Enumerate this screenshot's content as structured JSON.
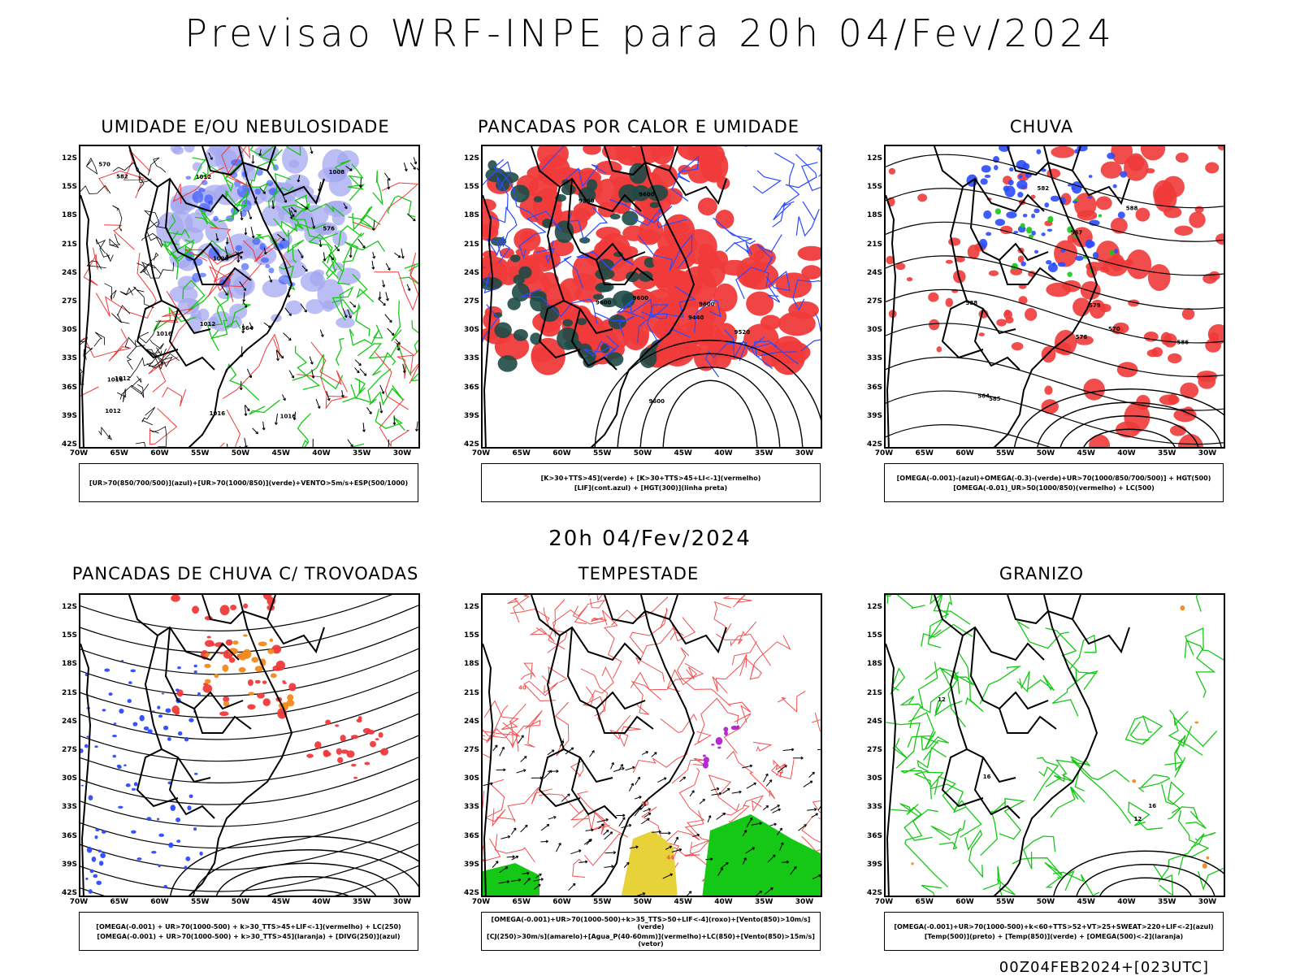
{
  "main_title": "Previsao WRF-INPE  para 20h 04/Fev/2024",
  "mid_title": "20h 04/Fev/2024",
  "footer": "00Z04FEB2024+[023UTC]",
  "lat_labels": [
    "12S",
    "15S",
    "18S",
    "21S",
    "24S",
    "27S",
    "30S",
    "33S",
    "36S",
    "39S",
    "42S"
  ],
  "lon_labels": [
    "70W",
    "65W",
    "60W",
    "55W",
    "50W",
    "45W",
    "40W",
    "35W",
    "30W"
  ],
  "colors": {
    "green": "#16c816",
    "blue": "#2a4bff",
    "red": "#f03a3a",
    "lavender": "#a4a8f0",
    "darkgreen": "#1e4a46",
    "orange": "#f08a20",
    "yellow": "#e8d23a",
    "purple": "#b020d0",
    "pink": "#f05050"
  },
  "panels": [
    {
      "title": "UMIDADE E/OU NEBULOSIDADE",
      "legend": [
        "[UR>70(850/700/500)](azul)+[UR>70(1000/850)](verde)+VENTO>5m/s+ESP(500/1000)"
      ],
      "contour_labels": [
        "1012",
        "1012",
        "1016",
        "1016",
        "1008",
        "1016",
        "1012",
        "1020",
        "1016",
        "1012",
        "576",
        "570",
        "564",
        "582"
      ]
    },
    {
      "title": "PANCADAS POR CALOR E UMIDADE",
      "legend": [
        "[K>30+TTS>45](verde) + [K>30+TTS>45+LI<-1](vermelho)",
        "[LIF](cont.azul) + [HGT(300)](linha preta)"
      ],
      "contour_labels": [
        "9600",
        "9600",
        "9600",
        "9600",
        "9600",
        "9520",
        "9440",
        "9360"
      ]
    },
    {
      "title": "CHUVA",
      "legend": [
        "[OMEGA(-0.001)-(azul)+OMEGA(-0.3)-(verde)+UR>70(1000/850/700/500)] + HGT(500)",
        "[OMEGA(-0.01)_UR>50(1000/850)(vermelho) + LC(500)"
      ],
      "contour_labels": [
        "588",
        "588",
        "586",
        "576",
        "570",
        "567",
        "564",
        "579",
        "582",
        "585"
      ]
    },
    {
      "title": "PANCADAS DE CHUVA C/ TROVOADAS",
      "legend": [
        "[OMEGA(-0.001) + UR>70(1000-500) + k>30_TTS>45+LIF<-1](vermelho) + LC(250)",
        "[OMEGA(-0.001) + UR>70(1000-500) + k>30_TTS>45](laranja) + [DIVG(250)](azul)"
      ],
      "contour_labels": []
    },
    {
      "title": "TEMPESTADE",
      "legend": [
        "[OMEGA(-0.001)+UR>70(1000-500)+k>35_TTS>50+LIF<-4](roxo)+[Vento(850)>10m/s](verde)",
        "[CJ(250)>30m/s](amarelo)+[Agua_P(40-60mm)](vermelho)+LC(850)+[Vento(850)>15m/s](vetor)"
      ],
      "contour_labels": [
        "40",
        "40",
        "44"
      ]
    },
    {
      "title": "GRANIZO",
      "legend": [
        "[OMEGA(-0.001)+UR>70(1000-500)+k<60+TTS>52+VT>25+SWEAT>220+LIF<-2](azul)",
        "[Temp(500)](preto) + [Temp(850)](verde) + [OMEGA(500)<-2](laranja)"
      ],
      "contour_labels": [
        "12",
        "12",
        "16",
        "16"
      ]
    }
  ]
}
